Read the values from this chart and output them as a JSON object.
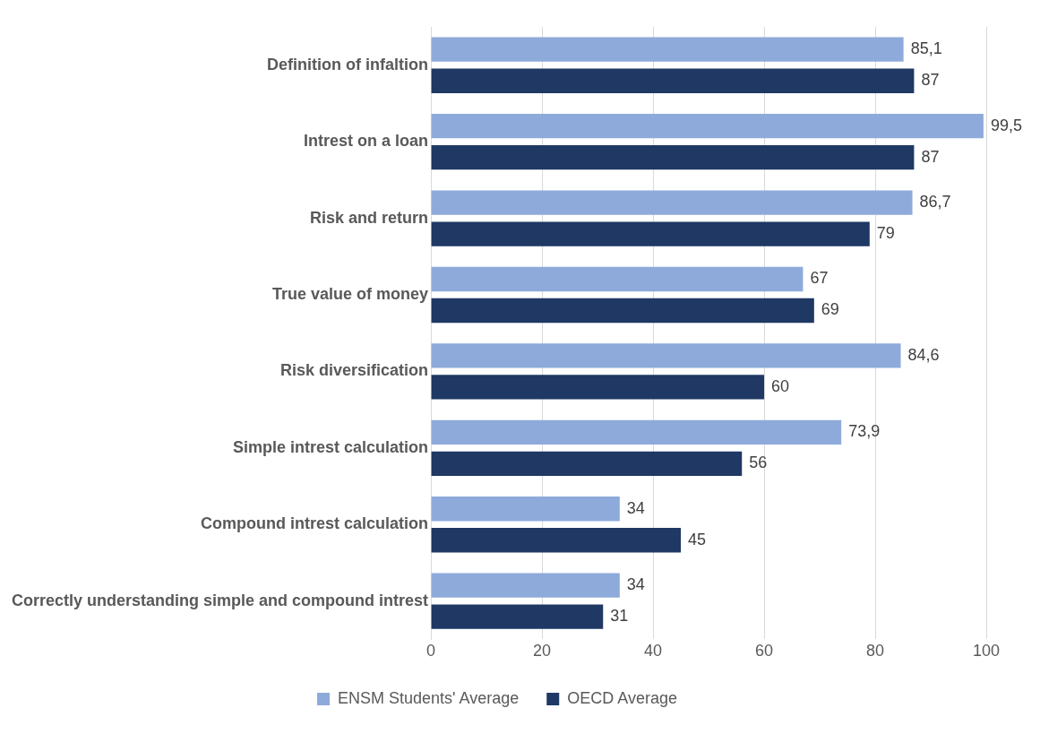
{
  "chart_data": {
    "type": "bar",
    "orientation": "horizontal",
    "categories": [
      "Definition of infaltion",
      "Intrest on a loan",
      "Risk and return",
      "True value of money",
      "Risk diversification",
      "Simple intrest calculation",
      "Compound intrest calculation",
      "Correctly understanding simple and compound intrest"
    ],
    "series": [
      {
        "name": "ENSM Students' Average",
        "color": "#8eaadb",
        "values": [
          85.1,
          99.5,
          86.7,
          67,
          84.6,
          73.9,
          34,
          34
        ],
        "value_labels": [
          "85,1",
          "99,5",
          "86,7",
          "67",
          "84,6",
          "73,9",
          "34",
          "34"
        ]
      },
      {
        "name": "OECD Average",
        "color": "#1f3864",
        "values": [
          87,
          87,
          79,
          69,
          60,
          56,
          45,
          31
        ],
        "value_labels": [
          "87",
          "87",
          "79",
          "69",
          "60",
          "56",
          "45",
          "31"
        ]
      }
    ],
    "xlim": [
      0,
      100
    ],
    "xticks": [
      0,
      20,
      40,
      60,
      80,
      100
    ],
    "grid": "x",
    "legend": "bottom"
  }
}
